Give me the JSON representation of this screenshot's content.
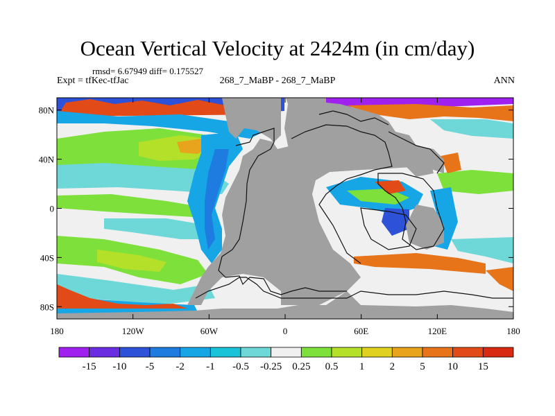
{
  "chart_data": {
    "type": "heatmap",
    "title": "Ocean Vertical Velocity at 2424m (in cm/day)",
    "stats": "rmsd= 6.67949 diff= 0.175527",
    "left_label": "Expt = tfKec-tfJac",
    "center_label": "268_7_MaBP - 268_7_MaBP",
    "right_label": "ANN",
    "x_tick_labels": [
      "180",
      "120W",
      "60W",
      "0",
      "60E",
      "120E",
      "180"
    ],
    "x_tick_values": [
      -180,
      -120,
      -60,
      0,
      60,
      120,
      180
    ],
    "y_tick_labels": [
      "80N",
      "40N",
      "0",
      "40S",
      "80S"
    ],
    "y_tick_values": [
      80,
      40,
      0,
      -40,
      -80
    ],
    "xlim": [
      -180,
      180
    ],
    "ylim": [
      -90,
      90
    ],
    "land_color": "#a0a0a0",
    "colorbar": {
      "labels": [
        "-15",
        "-10",
        "-5",
        "-2",
        "-1",
        "-0.5",
        "-0.25",
        "0.25",
        "0.5",
        "1",
        "2",
        "5",
        "10",
        "15"
      ],
      "colors": [
        "#a020f0",
        "#6a2ee0",
        "#2d52d8",
        "#1e7be0",
        "#16a6e6",
        "#1bc3d8",
        "#6ed8d8",
        "#f0f0f0",
        "#7ee03a",
        "#b4e02a",
        "#e0d020",
        "#e8a41c",
        "#e8741a",
        "#e24a18",
        "#d82a10"
      ]
    }
  }
}
